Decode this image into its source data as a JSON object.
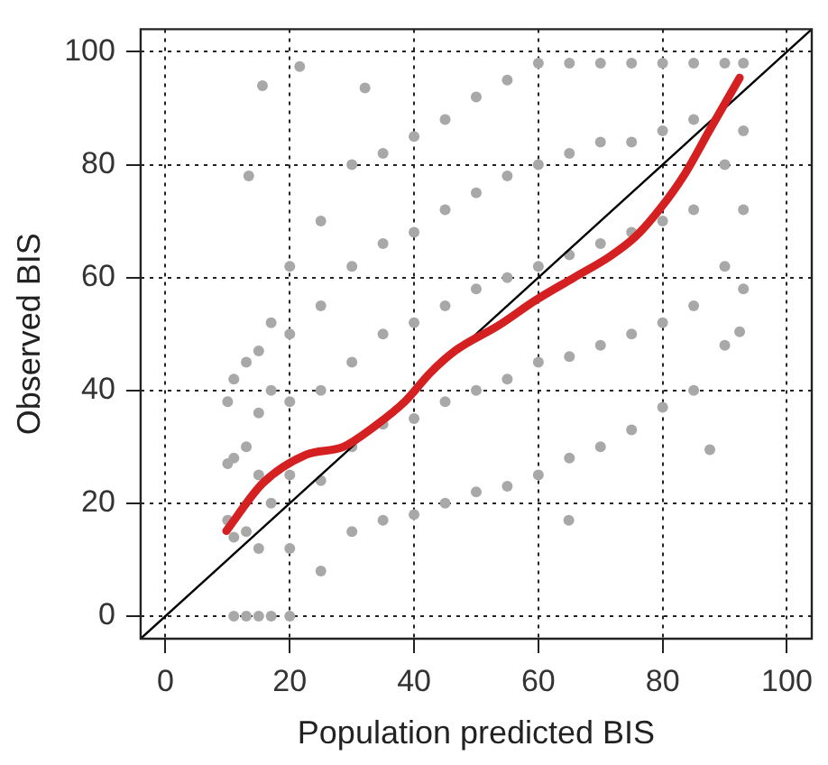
{
  "chart_data": {
    "type": "scatter",
    "xlabel": "Population predicted BIS",
    "ylabel": "Observed BIS",
    "xlim": [
      -4,
      104
    ],
    "ylim": [
      -4,
      104
    ],
    "xticks": [
      0,
      20,
      40,
      60,
      80,
      100
    ],
    "yticks": [
      0,
      20,
      40,
      60,
      80,
      100
    ],
    "grid": true,
    "legend": false,
    "series": [
      {
        "marker": "circle",
        "color": "#a8a8a8",
        "x": [
          10,
          10,
          10,
          11,
          11,
          11,
          11,
          13,
          13,
          13,
          13,
          15,
          15,
          15,
          15,
          15,
          17,
          17,
          17,
          17,
          20,
          20,
          20,
          20,
          20,
          20,
          25,
          25,
          25,
          25,
          25,
          30,
          30,
          30,
          30,
          30,
          35,
          35,
          35,
          35,
          35,
          40,
          40,
          40,
          40,
          40,
          45,
          45,
          45,
          45,
          45,
          50,
          50,
          50,
          50,
          50,
          55,
          55,
          55,
          55,
          55,
          60,
          60,
          60,
          60,
          60,
          65,
          65,
          65,
          65,
          65,
          70,
          70,
          70,
          70,
          70,
          75,
          75,
          75,
          75,
          75,
          80,
          80,
          80,
          80,
          80,
          85,
          85,
          85,
          85,
          85,
          90,
          90,
          90,
          90,
          93,
          93,
          93,
          93,
          15.6,
          21.6,
          32.1,
          13.4,
          64.9,
          87.6,
          92.4
        ],
        "values": [
          17,
          27,
          38,
          0,
          14,
          28,
          42,
          0,
          15,
          30,
          45,
          0,
          12,
          25,
          36,
          47,
          0,
          20,
          40,
          52,
          0,
          12,
          25,
          38,
          50,
          62,
          8,
          24,
          40,
          55,
          70,
          15,
          30,
          45,
          62,
          80,
          17,
          34,
          50,
          66,
          82,
          18,
          35,
          52,
          68,
          85,
          20,
          38,
          55,
          72,
          88,
          22,
          40,
          58,
          75,
          92,
          23,
          42,
          60,
          78,
          95,
          25,
          45,
          62,
          80,
          98,
          28,
          46,
          64,
          82,
          98,
          30,
          48,
          66,
          84,
          98,
          33,
          50,
          68,
          84,
          98,
          37,
          52,
          70,
          86,
          98,
          40,
          55,
          72,
          88,
          98,
          48,
          62,
          80,
          98,
          58,
          72,
          86,
          98,
          94,
          97.4,
          93.6,
          78,
          17,
          29.5,
          50.4
        ]
      },
      {
        "type": "line",
        "marker": "none",
        "color": "#000000",
        "x": [
          -4,
          104
        ],
        "values": [
          -4,
          104
        ]
      },
      {
        "type": "line",
        "marker": "none",
        "color": "#d42020",
        "line_style": "solid",
        "x": [
          9.8,
          15.6,
          22.6,
          28.6,
          33.6,
          38.6,
          42.6,
          46.6,
          53.6,
          59.6,
          65.6,
          71.6,
          75.6,
          79.6,
          83.6,
          87.6,
          92.4
        ],
        "values": [
          15.1,
          23.5,
          28.6,
          30,
          33.6,
          38.1,
          43.1,
          47,
          51.5,
          56,
          59.9,
          63.8,
          67.2,
          72.2,
          78.4,
          86.2,
          95.4
        ]
      }
    ]
  }
}
